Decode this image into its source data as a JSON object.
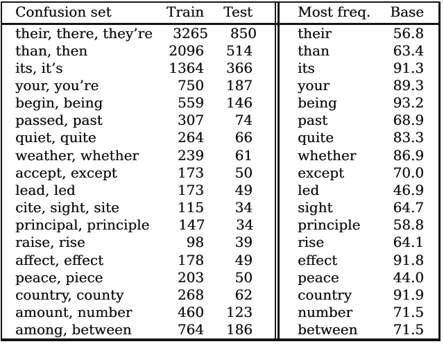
{
  "header": {
    "confusion_set": "Confusion set",
    "train": "Train",
    "test": "Test",
    "most_freq": "Most freq.",
    "base": "Base"
  },
  "colors": {
    "ink": "#151515",
    "paper": "#ffffff"
  },
  "chart_data": {
    "type": "table",
    "columns": [
      "Confusion set",
      "Train",
      "Test",
      "Most freq.",
      "Base"
    ],
    "rows_note": "see rows array"
  },
  "rows": [
    {
      "set": "their, there, they’re",
      "train": "3265",
      "test": "850",
      "most_freq": "their",
      "base": "56.8"
    },
    {
      "set": "than, then",
      "train": "2096",
      "test": "514",
      "most_freq": "than",
      "base": "63.4"
    },
    {
      "set": "its, it’s",
      "train": "1364",
      "test": "366",
      "most_freq": "its",
      "base": "91.3"
    },
    {
      "set": "your, you’re",
      "train": "750",
      "test": "187",
      "most_freq": "your",
      "base": "89.3"
    },
    {
      "set": "begin, being",
      "train": "559",
      "test": "146",
      "most_freq": "being",
      "base": "93.2"
    },
    {
      "set": "passed, past",
      "train": "307",
      "test": "74",
      "most_freq": "past",
      "base": "68.9"
    },
    {
      "set": "quiet, quite",
      "train": "264",
      "test": "66",
      "most_freq": "quite",
      "base": "83.3"
    },
    {
      "set": "weather, whether",
      "train": "239",
      "test": "61",
      "most_freq": "whether",
      "base": "86.9"
    },
    {
      "set": "accept, except",
      "train": "173",
      "test": "50",
      "most_freq": "except",
      "base": "70.0"
    },
    {
      "set": "lead, led",
      "train": "173",
      "test": "49",
      "most_freq": "led",
      "base": "46.9"
    },
    {
      "set": "cite, sight, site",
      "train": "115",
      "test": "34",
      "most_freq": "sight",
      "base": "64.7"
    },
    {
      "set": "principal, principle",
      "train": "147",
      "test": "34",
      "most_freq": "principle",
      "base": "58.8"
    },
    {
      "set": "raise, rise",
      "train": "98",
      "test": "39",
      "most_freq": "rise",
      "base": "64.1"
    },
    {
      "set": "affect, effect",
      "train": "178",
      "test": "49",
      "most_freq": "effect",
      "base": "91.8"
    },
    {
      "set": "peace, piece",
      "train": "203",
      "test": "50",
      "most_freq": "peace",
      "base": "44.0"
    },
    {
      "set": "country, county",
      "train": "268",
      "test": "62",
      "most_freq": "country",
      "base": "91.9"
    },
    {
      "set": "amount, number",
      "train": "460",
      "test": "123",
      "most_freq": "number",
      "base": "71.5"
    },
    {
      "set": "among, between",
      "train": "764",
      "test": "186",
      "most_freq": "between",
      "base": "71.5"
    }
  ]
}
